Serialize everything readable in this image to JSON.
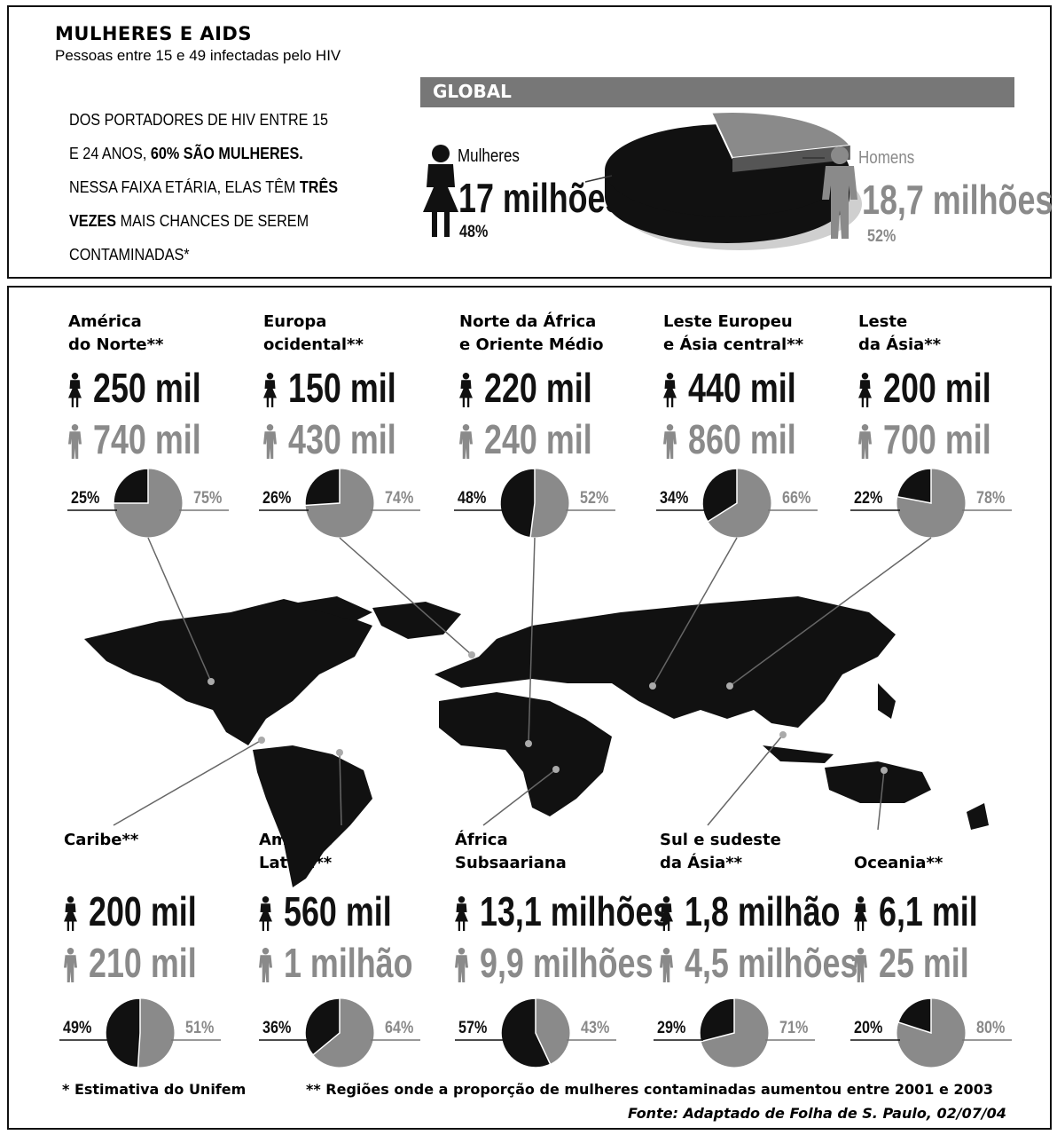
{
  "header": {
    "title": "MULHERES E AIDS",
    "subtitle": "Pessoas entre 15 e 49 infectadas pelo HIV",
    "intro_lines": [
      [
        "DOS PORTADORES DE HIV ENTRE 15",
        ""
      ],
      [
        "E 24 ANOS, ",
        "60% SÃO MULHERES."
      ],
      [
        "NESSA FAIXA ETÁRIA, ELAS TÊM ",
        "TRÊS"
      ],
      [
        "",
        "VEZES",
        " MAIS CHANCES DE SEREM"
      ],
      [
        "CONTAMINADAS*",
        ""
      ]
    ]
  },
  "global": {
    "label": "GLOBAL",
    "women_label": "Mulheres",
    "women_value": "17 milhões",
    "women_pct": "48%",
    "men_label": "Homens",
    "men_value": "18,7 milhões",
    "men_pct": "52%"
  },
  "footnotes": {
    "unifem": "* Estimativa do Unifem",
    "regions": "** Regiões onde a proporção de mulheres contaminadas aumentou entre 2001 e 2003",
    "source": "Fonte: Adaptado de Folha de S. Paulo, 02/07/04"
  },
  "colors": {
    "women": "#111111",
    "men": "#8a8a8a",
    "bar": "#777777"
  },
  "chart_data": [
    {
      "type": "pie",
      "title": "GLOBAL",
      "series": [
        {
          "name": "Mulheres",
          "value": 17,
          "unit": "milhões",
          "percent": 48
        },
        {
          "name": "Homens",
          "value": 18.7,
          "unit": "milhões",
          "percent": 52
        }
      ]
    },
    {
      "type": "pie",
      "title": "América do Norte**",
      "women": "250 mil",
      "men": "740 mil",
      "women_pct": 25,
      "men_pct": 75
    },
    {
      "type": "pie",
      "title": "Europa ocidental**",
      "women": "150 mil",
      "men": "430 mil",
      "women_pct": 26,
      "men_pct": 74
    },
    {
      "type": "pie",
      "title": "Norte da África e Oriente Médio",
      "women": "220 mil",
      "men": "240 mil",
      "women_pct": 48,
      "men_pct": 52
    },
    {
      "type": "pie",
      "title": "Leste Europeu e Ásia central**",
      "women": "440 mil",
      "men": "860 mil",
      "women_pct": 34,
      "men_pct": 66
    },
    {
      "type": "pie",
      "title": "Leste da Ásia**",
      "women": "200 mil",
      "men": "700 mil",
      "women_pct": 22,
      "men_pct": 78
    },
    {
      "type": "pie",
      "title": "Caribe**",
      "women": "200 mil",
      "men": "210 mil",
      "women_pct": 49,
      "men_pct": 51
    },
    {
      "type": "pie",
      "title": "América Latina**",
      "women": "560 mil",
      "men": "1 milhão",
      "women_pct": 36,
      "men_pct": 64
    },
    {
      "type": "pie",
      "title": "África Subsaariana",
      "women": "13,1 milhões",
      "men": "9,9 milhões",
      "women_pct": 57,
      "men_pct": 43
    },
    {
      "type": "pie",
      "title": "Sul e sudeste da Ásia**",
      "women": "1,8 milhão",
      "men": "4,5 milhões",
      "women_pct": 29,
      "men_pct": 71
    },
    {
      "type": "pie",
      "title": "Oceania**",
      "women": "6,1 mil",
      "men": "25 mil",
      "women_pct": 20,
      "men_pct": 80
    }
  ]
}
